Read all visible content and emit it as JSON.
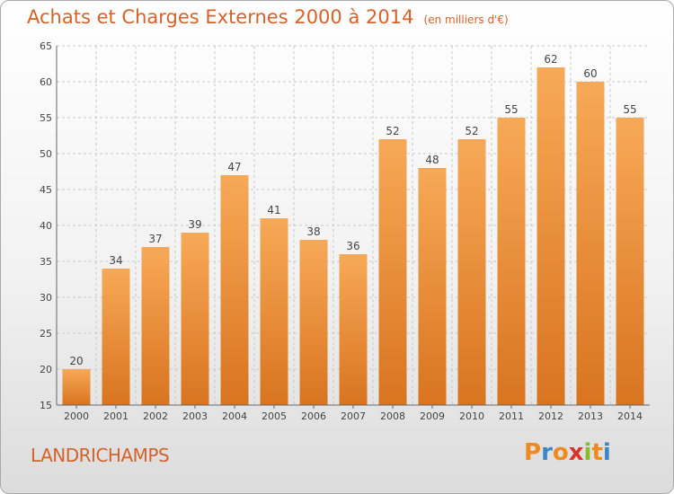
{
  "title": "Achats et Charges Externes 2000 à 2014",
  "unit": "(en milliers d'€)",
  "commune": "LANDRICHAMPS",
  "logo": {
    "text": "Proxiti",
    "letters": [
      "P",
      "r",
      "o",
      "x",
      "i",
      "t",
      "i"
    ],
    "colors": [
      "#f08a1c",
      "#3b86c6",
      "#f08a1c",
      "#d9342b",
      "#8bbb2a",
      "#f08a1c",
      "#3b86c6"
    ]
  },
  "colors": {
    "accent": "#d4622a",
    "bar_top": "#f7a957",
    "bar_bottom": "#d9741f",
    "grid": "#c8c8c8"
  },
  "chart_data": {
    "type": "bar",
    "categories": [
      "2000",
      "2001",
      "2002",
      "2003",
      "2004",
      "2005",
      "2006",
      "2007",
      "2008",
      "2009",
      "2010",
      "2011",
      "2012",
      "2013",
      "2014"
    ],
    "values": [
      20,
      34,
      37,
      39,
      47,
      41,
      38,
      36,
      52,
      48,
      52,
      55,
      62,
      60,
      55
    ],
    "ylim": [
      15,
      65
    ],
    "yticks": [
      15,
      20,
      25,
      30,
      35,
      40,
      45,
      50,
      55,
      60,
      65
    ],
    "grid": true,
    "data_labels": true
  }
}
